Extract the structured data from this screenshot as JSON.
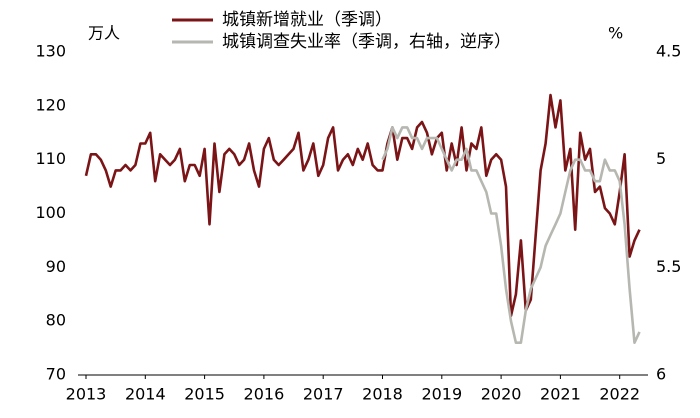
{
  "chart_data": {
    "type": "line",
    "y_unit_label": "万人",
    "y2_unit_label": "%",
    "categories": [
      "2013",
      null,
      null,
      null,
      null,
      null,
      null,
      null,
      null,
      null,
      null,
      null,
      "2014",
      null,
      null,
      null,
      null,
      null,
      null,
      null,
      null,
      null,
      null,
      null,
      "2015",
      null,
      null,
      null,
      null,
      null,
      null,
      null,
      null,
      null,
      null,
      null,
      "2016",
      null,
      null,
      null,
      null,
      null,
      null,
      null,
      null,
      null,
      null,
      null,
      "2017",
      null,
      null,
      null,
      null,
      null,
      null,
      null,
      null,
      null,
      null,
      null,
      "2018",
      null,
      null,
      null,
      null,
      null,
      null,
      null,
      null,
      null,
      null,
      null,
      "2019",
      null,
      null,
      null,
      null,
      null,
      null,
      null,
      null,
      null,
      null,
      null,
      "2020",
      null,
      null,
      null,
      null,
      null,
      null,
      null,
      null,
      null,
      null,
      null,
      "2021",
      null,
      null,
      null,
      null,
      null,
      null,
      null,
      null,
      null,
      null,
      null,
      "2022",
      null,
      null,
      null,
      null
    ],
    "series": [
      {
        "name": "城镇新增就业（季调）",
        "color": "#7b1416",
        "axis": "y",
        "values": [
          107,
          111,
          111,
          110,
          108,
          105,
          108,
          108,
          109,
          108,
          109,
          113,
          113,
          115,
          106,
          111,
          110,
          109,
          110,
          112,
          106,
          109,
          109,
          107,
          112,
          98,
          113,
          104,
          111,
          112,
          111,
          109,
          110,
          113,
          108,
          105,
          112,
          114,
          110,
          109,
          110,
          111,
          112,
          115,
          108,
          110,
          113,
          107,
          109,
          114,
          116,
          108,
          110,
          111,
          109,
          112,
          110,
          113,
          109,
          108,
          108,
          113,
          116,
          110,
          114,
          114,
          112,
          116,
          117,
          115,
          111,
          114,
          115,
          108,
          113,
          109,
          116,
          108,
          113,
          112,
          116,
          107,
          110,
          111,
          110,
          105,
          81,
          85,
          95,
          82,
          84,
          96,
          108,
          113,
          122,
          116,
          121,
          108,
          112,
          97,
          115,
          110,
          112,
          104,
          105,
          101,
          100,
          98,
          104,
          111,
          92,
          95,
          97
        ]
      },
      {
        "name": "城镇调查失业率（季调，右轴，逆序）",
        "color": "#b6b7b0",
        "axis": "y2",
        "values": [
          null,
          null,
          null,
          null,
          null,
          null,
          null,
          null,
          null,
          null,
          null,
          null,
          null,
          null,
          null,
          null,
          null,
          null,
          null,
          null,
          null,
          null,
          null,
          null,
          null,
          null,
          null,
          null,
          null,
          null,
          null,
          null,
          null,
          null,
          null,
          null,
          null,
          null,
          null,
          null,
          null,
          null,
          null,
          null,
          null,
          null,
          null,
          null,
          null,
          null,
          null,
          null,
          null,
          null,
          null,
          null,
          null,
          null,
          null,
          null,
          5.0,
          4.95,
          4.85,
          4.9,
          4.85,
          4.85,
          4.9,
          4.9,
          4.95,
          4.9,
          4.9,
          4.9,
          4.95,
          5.0,
          5.05,
          5.0,
          5.0,
          4.95,
          5.05,
          5.05,
          5.1,
          5.15,
          5.25,
          5.25,
          5.4,
          5.6,
          5.75,
          5.85,
          5.85,
          5.7,
          5.6,
          5.55,
          5.5,
          5.4,
          5.35,
          5.3,
          5.25,
          5.15,
          5.05,
          5.0,
          5.0,
          5.05,
          5.05,
          5.1,
          5.1,
          5.0,
          5.05,
          5.05,
          5.1,
          5.3,
          5.6,
          5.85,
          5.8
        ]
      }
    ],
    "ylim": [
      70,
      130
    ],
    "yticks": [
      70,
      80,
      90,
      100,
      110,
      120,
      130
    ],
    "y2lim": [
      4.5,
      6
    ],
    "y2ticks": [
      4.5,
      5,
      5.5,
      6
    ],
    "y2_inverted": true,
    "grid": false,
    "legend": "top-left"
  }
}
